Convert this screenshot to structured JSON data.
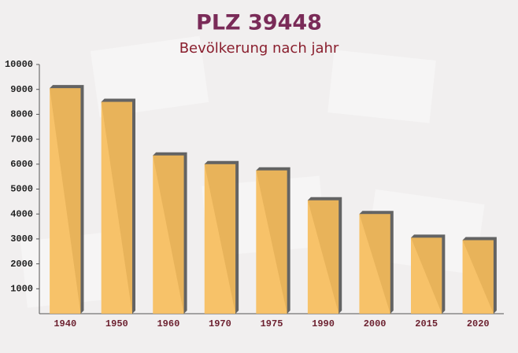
{
  "chart_data": {
    "type": "bar",
    "title": "PLZ 39448",
    "subtitle": "Bevölkerung nach jahr",
    "categories": [
      "1940",
      "1950",
      "1960",
      "1970",
      "1975",
      "1990",
      "2000",
      "2015",
      "2020"
    ],
    "values": [
      9050,
      8500,
      6350,
      6000,
      5750,
      4550,
      4000,
      3050,
      2950
    ],
    "color": "#f7bc5a",
    "ylim": [
      0,
      10000
    ],
    "yticks": [
      1000,
      2000,
      3000,
      4000,
      5000,
      6000,
      7000,
      8000,
      9000,
      10000
    ]
  }
}
